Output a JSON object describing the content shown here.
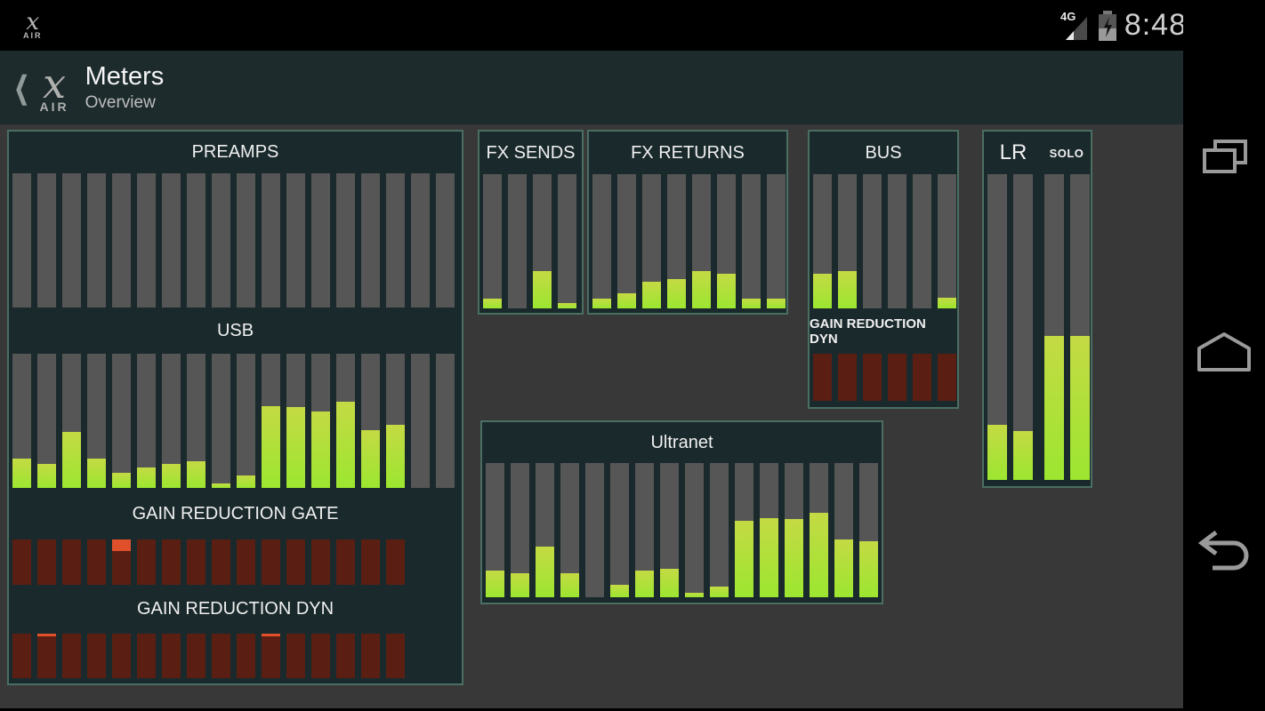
{
  "status_bar": {
    "network": "4G",
    "time": "8:48"
  },
  "header": {
    "back_glyph": "❮",
    "title": "Meters",
    "subtitle": "Overview",
    "logo": {
      "x": "x",
      "air": "AIR"
    }
  },
  "colors": {
    "content_bg": "#383838",
    "panel_bg": "#1a292c",
    "panel_border": "#4a6e62",
    "meter_track": "#565656",
    "meter_green_top": "#c4da44",
    "meter_green_bottom": "#9ce630",
    "reduction_track": "#5a1f12",
    "reduction_hot": "#e0512b"
  },
  "panels": {
    "preamps": {
      "title": "PREAMPS",
      "kind": "level",
      "levels": [
        0,
        0,
        0,
        0,
        0,
        0,
        0,
        0,
        0,
        0,
        0,
        0,
        0,
        0,
        0,
        0,
        0,
        0
      ]
    },
    "usb": {
      "title": "USB",
      "kind": "level",
      "levels": [
        22,
        18,
        42,
        22,
        11,
        15,
        18,
        20,
        3,
        9,
        61,
        60,
        57,
        64,
        43,
        47,
        0,
        0
      ]
    },
    "gate": {
      "title": "GAIN REDUCTION GATE",
      "kind": "reduction",
      "count": 16,
      "hot": [
        0,
        0,
        0,
        0,
        25,
        0,
        0,
        0,
        0,
        0,
        0,
        0,
        0,
        0,
        0,
        0
      ]
    },
    "dyn": {
      "title": "GAIN REDUCTION DYN",
      "kind": "reduction",
      "count": 16,
      "hot": [
        0,
        6,
        0,
        0,
        0,
        0,
        0,
        0,
        0,
        0,
        6,
        0,
        0,
        0,
        0,
        0
      ]
    },
    "fx_sends": {
      "title": "FX SENDS",
      "kind": "level",
      "levels": [
        7,
        0,
        28,
        4
      ]
    },
    "fx_returns": {
      "title": "FX RETURNS",
      "kind": "level",
      "levels": [
        7,
        11,
        20,
        22,
        28,
        26,
        7,
        7
      ]
    },
    "bus": {
      "title": "BUS",
      "kind": "level",
      "levels": [
        26,
        28,
        0,
        0,
        0,
        8
      ]
    },
    "bus_dyn": {
      "title": "GAIN REDUCTION DYN",
      "kind": "reduction",
      "count": 6,
      "hot": [
        0,
        0,
        0,
        0,
        0,
        0
      ]
    },
    "ultranet": {
      "title": "Ultranet",
      "kind": "level",
      "levels": [
        20,
        18,
        38,
        18,
        0,
        9,
        20,
        21,
        3,
        8,
        57,
        59,
        58,
        63,
        43,
        42
      ]
    },
    "lr": {
      "title_left": "LR",
      "title_right": "SOLO",
      "kind": "level",
      "levels": [
        18,
        16,
        47,
        47
      ]
    }
  },
  "nav_buttons": [
    {
      "name": "recents"
    },
    {
      "name": "home"
    },
    {
      "name": "back"
    }
  ]
}
